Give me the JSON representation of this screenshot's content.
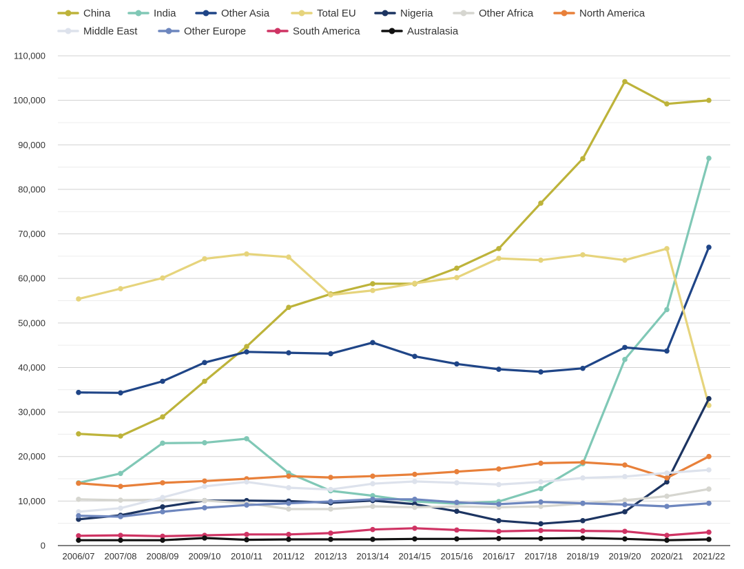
{
  "chart_data": {
    "type": "line",
    "title": "",
    "xlabel": "",
    "ylabel": "",
    "ylim": [
      0,
      110000
    ],
    "yticks": [
      0,
      10000,
      20000,
      30000,
      40000,
      50000,
      60000,
      70000,
      80000,
      90000,
      100000,
      110000
    ],
    "ytick_labels": [
      "0",
      "10,000",
      "20,000",
      "30,000",
      "40,000",
      "50,000",
      "60,000",
      "70,000",
      "80,000",
      "90,000",
      "100,000",
      "110,000"
    ],
    "grid": true,
    "legend_position": "top",
    "categories": [
      "2006/07",
      "2007/08",
      "2008/09",
      "2009/10",
      "2010/11",
      "2011/12",
      "2012/13",
      "2013/14",
      "2014/15",
      "2015/16",
      "2016/17",
      "2017/18",
      "2018/19",
      "2019/20",
      "2020/21",
      "2021/22"
    ],
    "series": [
      {
        "name": "China",
        "color": "#bdb33a",
        "values": [
          25100,
          24600,
          28900,
          36900,
          44700,
          53500,
          56500,
          58800,
          58800,
          62300,
          66700,
          76900,
          86900,
          104200,
          99200,
          100000
        ]
      },
      {
        "name": "India",
        "color": "#80c8b6",
        "values": [
          14100,
          16200,
          23000,
          23100,
          24000,
          16300,
          12300,
          11200,
          9900,
          9400,
          9900,
          12800,
          18400,
          41800,
          53000,
          87000
        ]
      },
      {
        "name": "Other Asia",
        "color": "#1f4587",
        "values": [
          34400,
          34300,
          36900,
          41100,
          43500,
          43300,
          43100,
          45600,
          42500,
          40800,
          39600,
          39000,
          39800,
          44500,
          43700,
          67000
        ]
      },
      {
        "name": "Total EU",
        "color": "#e6d47c",
        "values": [
          55400,
          57700,
          60100,
          64400,
          65500,
          64800,
          56300,
          57300,
          58900,
          60200,
          64500,
          64100,
          65300,
          64100,
          66700,
          31500
        ]
      },
      {
        "name": "Nigeria",
        "color": "#1c3461",
        "values": [
          5900,
          6800,
          8700,
          10100,
          10100,
          10000,
          9600,
          10100,
          9300,
          7700,
          5600,
          4900,
          5600,
          7600,
          14300,
          33000
        ]
      },
      {
        "name": "Other Africa",
        "color": "#d6d6d0",
        "values": [
          10400,
          10200,
          10300,
          10100,
          9500,
          8200,
          8200,
          8800,
          8600,
          8800,
          8600,
          8800,
          9400,
          10200,
          11100,
          12700
        ]
      },
      {
        "name": "North America",
        "color": "#e8803a",
        "values": [
          14000,
          13300,
          14100,
          14500,
          15000,
          15600,
          15300,
          15600,
          16000,
          16600,
          17200,
          18500,
          18700,
          18100,
          15200,
          20000
        ]
      },
      {
        "name": "Middle East",
        "color": "#dde2ec",
        "values": [
          7600,
          8400,
          10800,
          13300,
          14300,
          13000,
          12600,
          13900,
          14400,
          14100,
          13700,
          14300,
          15200,
          15500,
          16300,
          17000
        ]
      },
      {
        "name": "Other Europe",
        "color": "#6d86be",
        "values": [
          6700,
          6500,
          7600,
          8500,
          9100,
          9500,
          9900,
          10400,
          10400,
          9700,
          9300,
          9800,
          9500,
          9200,
          8800,
          9500
        ]
      },
      {
        "name": "South America",
        "color": "#cf3464",
        "values": [
          2200,
          2300,
          2100,
          2300,
          2500,
          2500,
          2800,
          3600,
          3900,
          3500,
          3200,
          3400,
          3300,
          3200,
          2300,
          3000
        ]
      },
      {
        "name": "Australasia",
        "color": "#111111",
        "values": [
          1200,
          1200,
          1200,
          1700,
          1300,
          1400,
          1400,
          1400,
          1500,
          1500,
          1600,
          1600,
          1700,
          1500,
          1200,
          1400
        ]
      }
    ]
  }
}
